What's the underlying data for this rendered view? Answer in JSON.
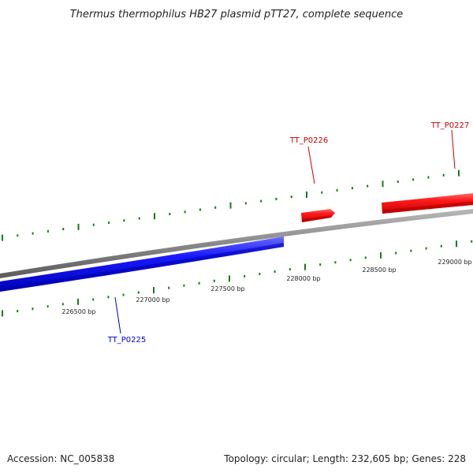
{
  "title": "Thermus thermophilus HB27 plasmid pTT27, complete sequence",
  "accession": "Accession: NC_005838",
  "summary": "Topology: circular; Length: 232,605 bp; Genes: 228",
  "colors": {
    "backbone": "#8a8a8a",
    "forward_gene": "#ff0000",
    "reverse_gene": "#0000ee",
    "ticks": "#1a7a1a",
    "title": "#222222"
  },
  "scale": {
    "unit": "bp",
    "labels": [
      "226500 bp",
      "227000 bp",
      "227500 bp",
      "228000 bp",
      "228500 bp",
      "229000 bp"
    ]
  },
  "genes": [
    {
      "name": "TT_P0225",
      "strand": "reverse",
      "color": "#0000cc"
    },
    {
      "name": "TT_P0226",
      "strand": "forward",
      "color": "#cc0000"
    },
    {
      "name": "TT_P0227",
      "strand": "forward",
      "color": "#cc0000"
    }
  ]
}
